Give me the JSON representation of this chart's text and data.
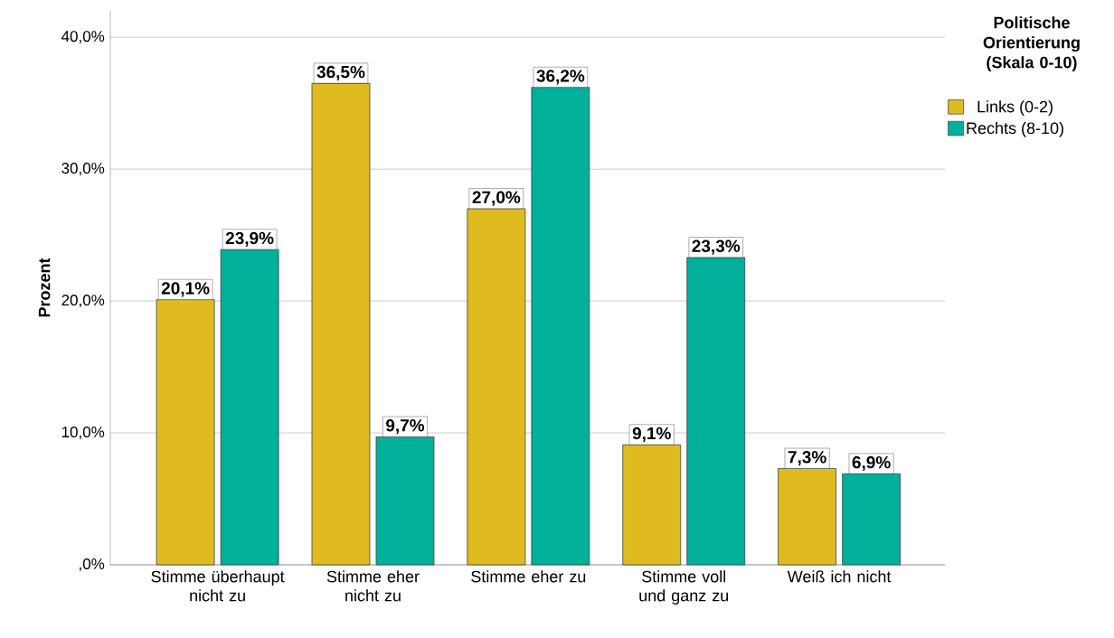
{
  "chart_data": {
    "type": "bar",
    "ylabel": "Prozent",
    "legend_title": "Politische Orientierung (Skala 0-10)",
    "categories": [
      "Stimme überhaupt nicht zu",
      "Stimme eher nicht zu",
      "Stimme eher zu",
      "Stimme voll und ganz zu",
      "Weiß ich nicht"
    ],
    "series": [
      {
        "name": "Links (0-2)",
        "color": "#e0bb1f",
        "values": [
          20.1,
          36.5,
          27.0,
          9.1,
          7.3
        ],
        "value_labels": [
          "20,1%",
          "36,5%",
          "27,0%",
          "9,1%",
          "7,3%"
        ]
      },
      {
        "name": "Rechts (8-10)",
        "color": "#00b09b",
        "values": [
          23.9,
          9.7,
          36.2,
          23.3,
          6.9
        ],
        "value_labels": [
          "23,9%",
          "9,7%",
          "36,2%",
          "23,3%",
          "6,9%"
        ]
      }
    ],
    "ylim": [
      0,
      42
    ],
    "yticks": [
      {
        "value": 0,
        "label": ",0%"
      },
      {
        "value": 10,
        "label": "10,0%"
      },
      {
        "value": 20,
        "label": "20,0%"
      },
      {
        "value": 30,
        "label": "30,0%"
      },
      {
        "value": 40,
        "label": "40,0%"
      }
    ],
    "grid": "y",
    "legend": "top right"
  }
}
